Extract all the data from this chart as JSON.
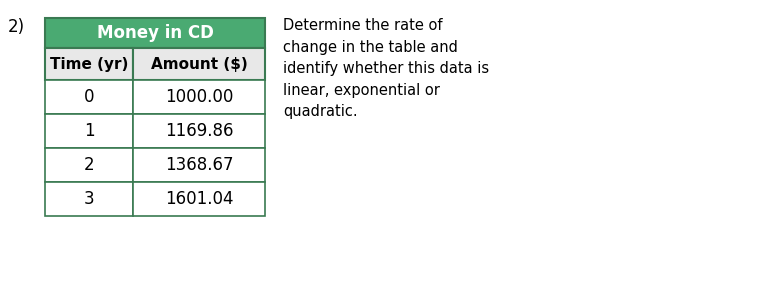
{
  "title": "Money in CD",
  "col1_header": "Time (yr)",
  "col2_header": "Amount ($)",
  "rows": [
    [
      "0",
      "1000.00"
    ],
    [
      "1",
      "1169.86"
    ],
    [
      "2",
      "1368.67"
    ],
    [
      "3",
      "1601.04"
    ]
  ],
  "label_number": "2)",
  "side_text": "Determine the rate of\nchange in the table and\nidentify whether this data is\nlinear, exponential or\nquadratic.",
  "header_bg": "#4aaa72",
  "header_text_color": "#ffffff",
  "col_header_bg": "#e8e8e8",
  "row_bg": "#ffffff",
  "border_color": "#3a7a52",
  "background_color": "#ffffff",
  "title_fontsize": 12,
  "header_fontsize": 11,
  "data_fontsize": 12,
  "side_text_fontsize": 10.5,
  "label_fontsize": 12
}
